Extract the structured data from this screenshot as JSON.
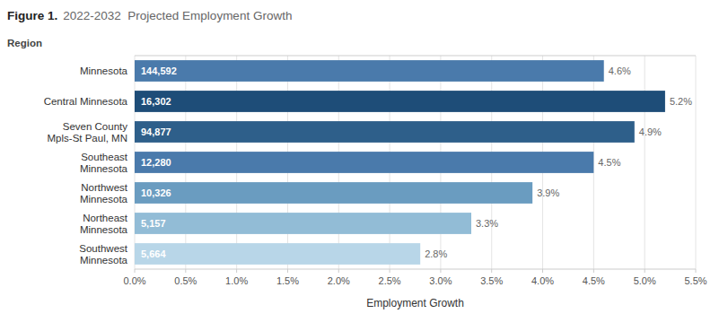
{
  "chart_data": {
    "type": "bar",
    "orientation": "horizontal",
    "title": "Figure 1.",
    "subtitle": "2022-2032  Projected Employment Growth",
    "xlabel": "Employment Growth",
    "ylabel": "Region",
    "categories": [
      "Minnesota",
      "Central Minnesota",
      "Seven County\nMpls-St Paul, MN",
      "Southeast\nMinnesota",
      "Northwest\nMinnesota",
      "Northeast\nMinnesota",
      "Southwest\nMinnesota"
    ],
    "values": [
      4.6,
      5.2,
      4.9,
      4.5,
      3.9,
      3.3,
      2.8
    ],
    "value_labels": [
      "4.6%",
      "5.2%",
      "4.9%",
      "4.5%",
      "3.9%",
      "3.3%",
      "2.8%"
    ],
    "data_labels": true,
    "counts": [
      144592,
      16302,
      94877,
      12280,
      10326,
      5157,
      5664
    ],
    "count_labels": [
      "144,592",
      "16,302",
      "94,877",
      "12,280",
      "10,326",
      "5,157",
      "5,664"
    ],
    "colors": [
      "#4a7aab",
      "#1e4d78",
      "#2e5f8a",
      "#4a7aab",
      "#6a9cc0",
      "#92bcd6",
      "#b8d6e8"
    ],
    "xlim": [
      0,
      5.5
    ],
    "xticks": [
      {
        "value": 0.0,
        "label": "0.0%"
      },
      {
        "value": 0.5,
        "label": "0.5%"
      },
      {
        "value": 1.0,
        "label": "1.0%"
      },
      {
        "value": 1.5,
        "label": "1.5%"
      },
      {
        "value": 2.0,
        "label": "2.0%"
      },
      {
        "value": 2.5,
        "label": "2.5%"
      },
      {
        "value": 3.0,
        "label": "3.0%"
      },
      {
        "value": 3.5,
        "label": "3.5%"
      },
      {
        "value": 4.0,
        "label": "4.0%"
      },
      {
        "value": 4.5,
        "label": "4.5%"
      },
      {
        "value": 5.0,
        "label": "5.0%"
      },
      {
        "value": 5.5,
        "label": "5.5%"
      }
    ],
    "grid": true
  }
}
